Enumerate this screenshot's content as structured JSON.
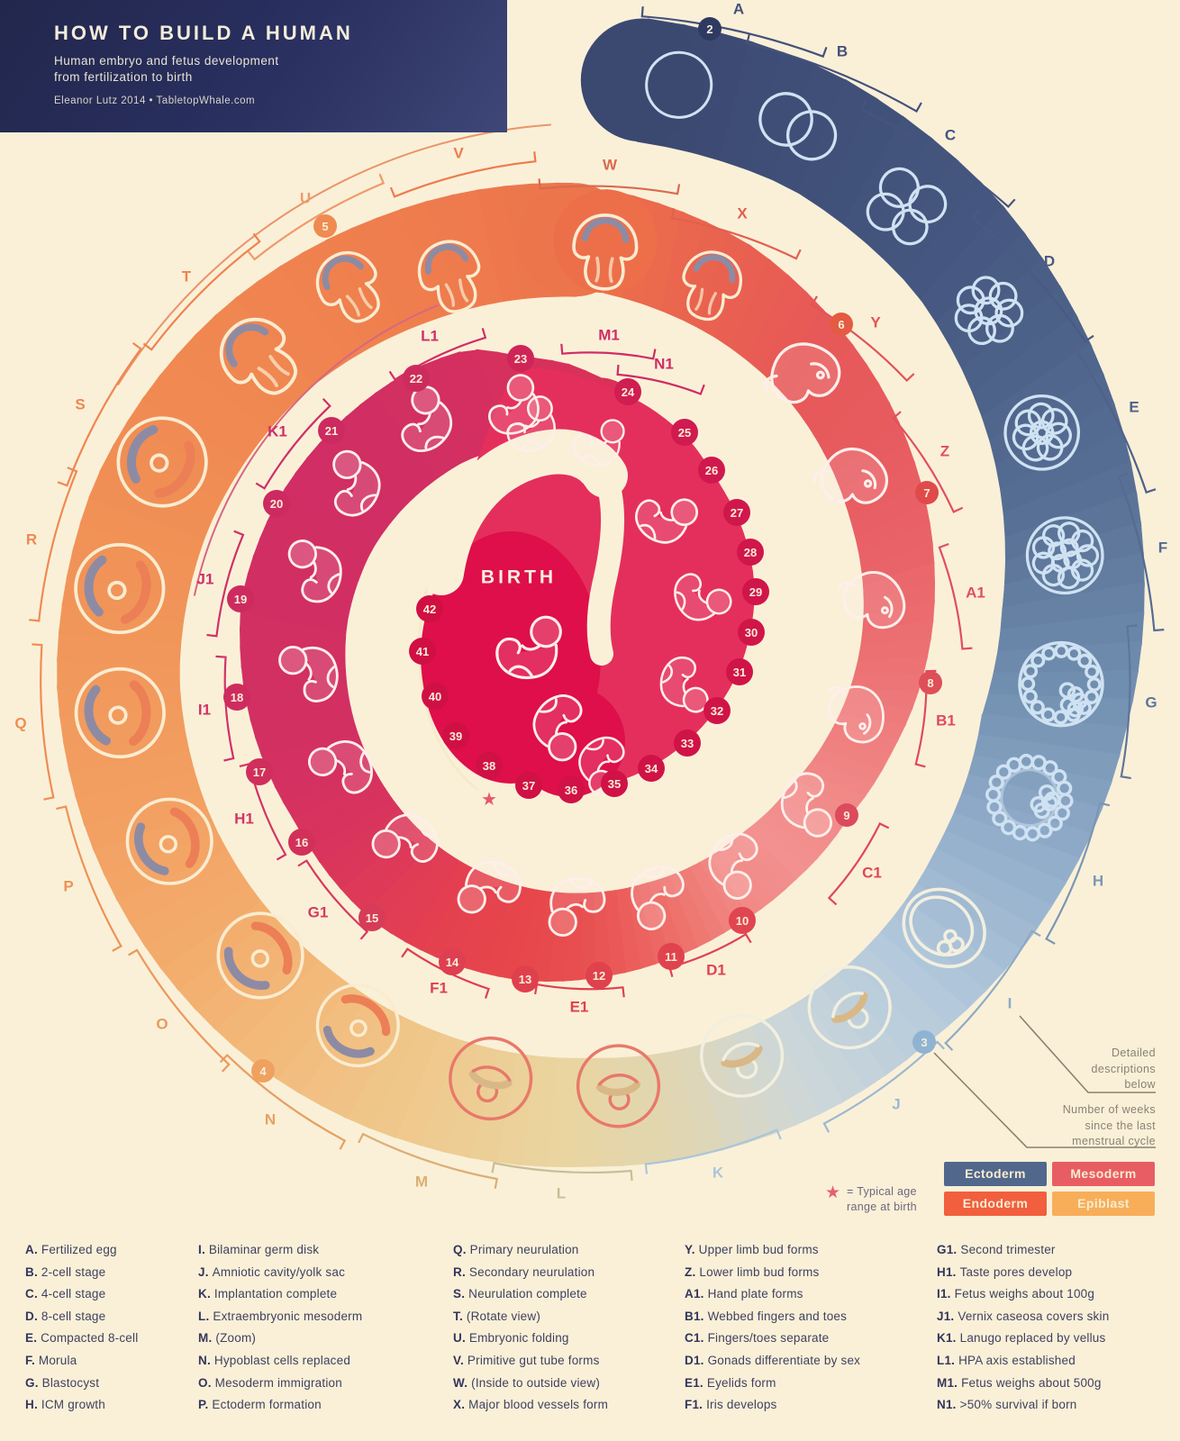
{
  "header": {
    "title": "HOW TO BUILD A HUMAN",
    "subtitle_line1": "Human embryo and fetus development",
    "subtitle_line2": "from fertilization to birth",
    "credit": "Eleanor Lutz 2014 • TabletopWhale.com"
  },
  "center_label": "BIRTH",
  "annotations": {
    "detailed": [
      "Detailed",
      "descriptions",
      "below"
    ],
    "weeks_note": [
      "Number of weeks",
      "since the last",
      "menstrual cycle"
    ],
    "star_note_line1": "= Typical age",
    "star_note_line2": "range at birth"
  },
  "legend": [
    {
      "label": "Ectoderm",
      "color": "#51678c"
    },
    {
      "label": "Mesoderm",
      "color": "#e85d64"
    },
    {
      "label": "Endoderm",
      "color": "#f15f3e"
    },
    {
      "label": "Epiblast",
      "color": "#f8ae59"
    }
  ],
  "weeks": [
    2,
    3,
    4,
    5,
    6,
    7,
    8,
    9,
    10,
    11,
    12,
    13,
    14,
    15,
    16,
    17,
    18,
    19,
    20,
    21,
    22,
    23,
    24,
    25,
    26,
    27,
    28,
    29,
    30,
    31,
    32,
    33,
    34,
    35,
    36,
    37,
    38,
    39,
    40,
    41,
    42
  ],
  "stages": {
    "columns": [
      {
        "items": [
          {
            "k": "A",
            "label": "Fertilized egg"
          },
          {
            "k": "B",
            "label": "2-cell stage"
          },
          {
            "k": "C",
            "label": "4-cell stage"
          },
          {
            "k": "D",
            "label": "8-cell stage"
          },
          {
            "k": "E",
            "label": "Compacted 8-cell"
          },
          {
            "k": "F",
            "label": "Morula"
          },
          {
            "k": "G",
            "label": "Blastocyst"
          },
          {
            "k": "H",
            "label": "ICM growth"
          }
        ]
      },
      {
        "items": [
          {
            "k": "I",
            "label": "Bilaminar germ disk"
          },
          {
            "k": "J",
            "label": "Amniotic cavity/yolk sac"
          },
          {
            "k": "K",
            "label": "Implantation complete"
          },
          {
            "k": "L",
            "label": "Extraembryonic mesoderm"
          },
          {
            "k": "M",
            "label": "(Zoom)"
          },
          {
            "k": "N",
            "label": "Hypoblast cells replaced"
          },
          {
            "k": "O",
            "label": "Mesoderm immigration"
          },
          {
            "k": "P",
            "label": "Ectoderm formation"
          }
        ]
      },
      {
        "items": [
          {
            "k": "Q",
            "label": "Primary neurulation"
          },
          {
            "k": "R",
            "label": "Secondary neurulation"
          },
          {
            "k": "S",
            "label": "Neurulation complete"
          },
          {
            "k": "T",
            "label": "(Rotate view)"
          },
          {
            "k": "U",
            "label": "Embryonic folding"
          },
          {
            "k": "V",
            "label": "Primitive gut tube forms"
          },
          {
            "k": "W",
            "label": "(Inside to outside view)"
          },
          {
            "k": "X",
            "label": "Major blood vessels form"
          }
        ]
      },
      {
        "items": [
          {
            "k": "Y",
            "label": "Upper limb bud forms"
          },
          {
            "k": "Z",
            "label": "Lower limb bud forms"
          },
          {
            "k": "A1",
            "label": "Hand plate forms"
          },
          {
            "k": "B1",
            "label": "Webbed fingers and toes"
          },
          {
            "k": "C1",
            "label": "Fingers/toes separate"
          },
          {
            "k": "D1",
            "label": "Gonads differentiate by sex"
          },
          {
            "k": "E1",
            "label": "Eyelids form"
          },
          {
            "k": "F1",
            "label": "Iris develops"
          }
        ]
      },
      {
        "items": [
          {
            "k": "G1",
            "label": "Second trimester"
          },
          {
            "k": "H1",
            "label": "Taste pores develop"
          },
          {
            "k": "I1",
            "label": "Fetus weighs about 100g"
          },
          {
            "k": "J1",
            "label": "Vernix caseosa covers skin"
          },
          {
            "k": "K1",
            "label": "Lanugo replaced by vellus"
          },
          {
            "k": "L1",
            "label": "HPA axis established"
          },
          {
            "k": "M1",
            "label": "Fetus weighs about 500g"
          },
          {
            "k": "N1",
            "label": ">50% survival if born"
          }
        ]
      }
    ]
  }
}
